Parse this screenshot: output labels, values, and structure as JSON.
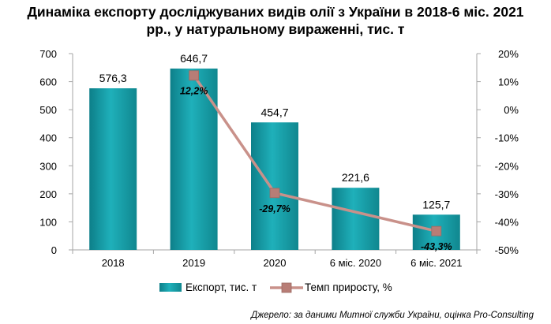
{
  "chart_data": {
    "type": "bar+line",
    "title_line1": "Динаміка експорту досліджуваних видів олії з України в 2018-6 міс. 2021",
    "title_line2": "рр., у натуральному вираженні, тис. т",
    "categories": [
      "2018",
      "2019",
      "2020",
      "6 міс. 2020",
      "6 міс. 2021"
    ],
    "series": [
      {
        "name": "Експорт, тис. т",
        "type": "bar",
        "axis": "left",
        "values": [
          576.3,
          646.7,
          454.7,
          221.6,
          125.7
        ],
        "labels": [
          "576,3",
          "646,7",
          "454,7",
          "221,6",
          "125,7"
        ],
        "color": "#1a9ba5"
      },
      {
        "name": "Темп приросту, %",
        "type": "line",
        "axis": "right",
        "values": [
          null,
          12.2,
          -29.7,
          null,
          -43.3
        ],
        "labels": [
          null,
          "12,2%",
          "-29,7%",
          null,
          "-43,3%"
        ],
        "color": "#c9918a"
      }
    ],
    "y_left": {
      "min": 0,
      "max": 700,
      "ticks": [
        "0",
        "100",
        "200",
        "300",
        "400",
        "500",
        "600",
        "700"
      ]
    },
    "y_right": {
      "min": -50,
      "max": 20,
      "ticks": [
        "-50%",
        "-40%",
        "-30%",
        "-20%",
        "-10%",
        "0%",
        "10%",
        "20%"
      ]
    },
    "legend_position": "bottom",
    "source": "Джерело: за даними Митної служби України, оцінка Pro-Consulting"
  }
}
